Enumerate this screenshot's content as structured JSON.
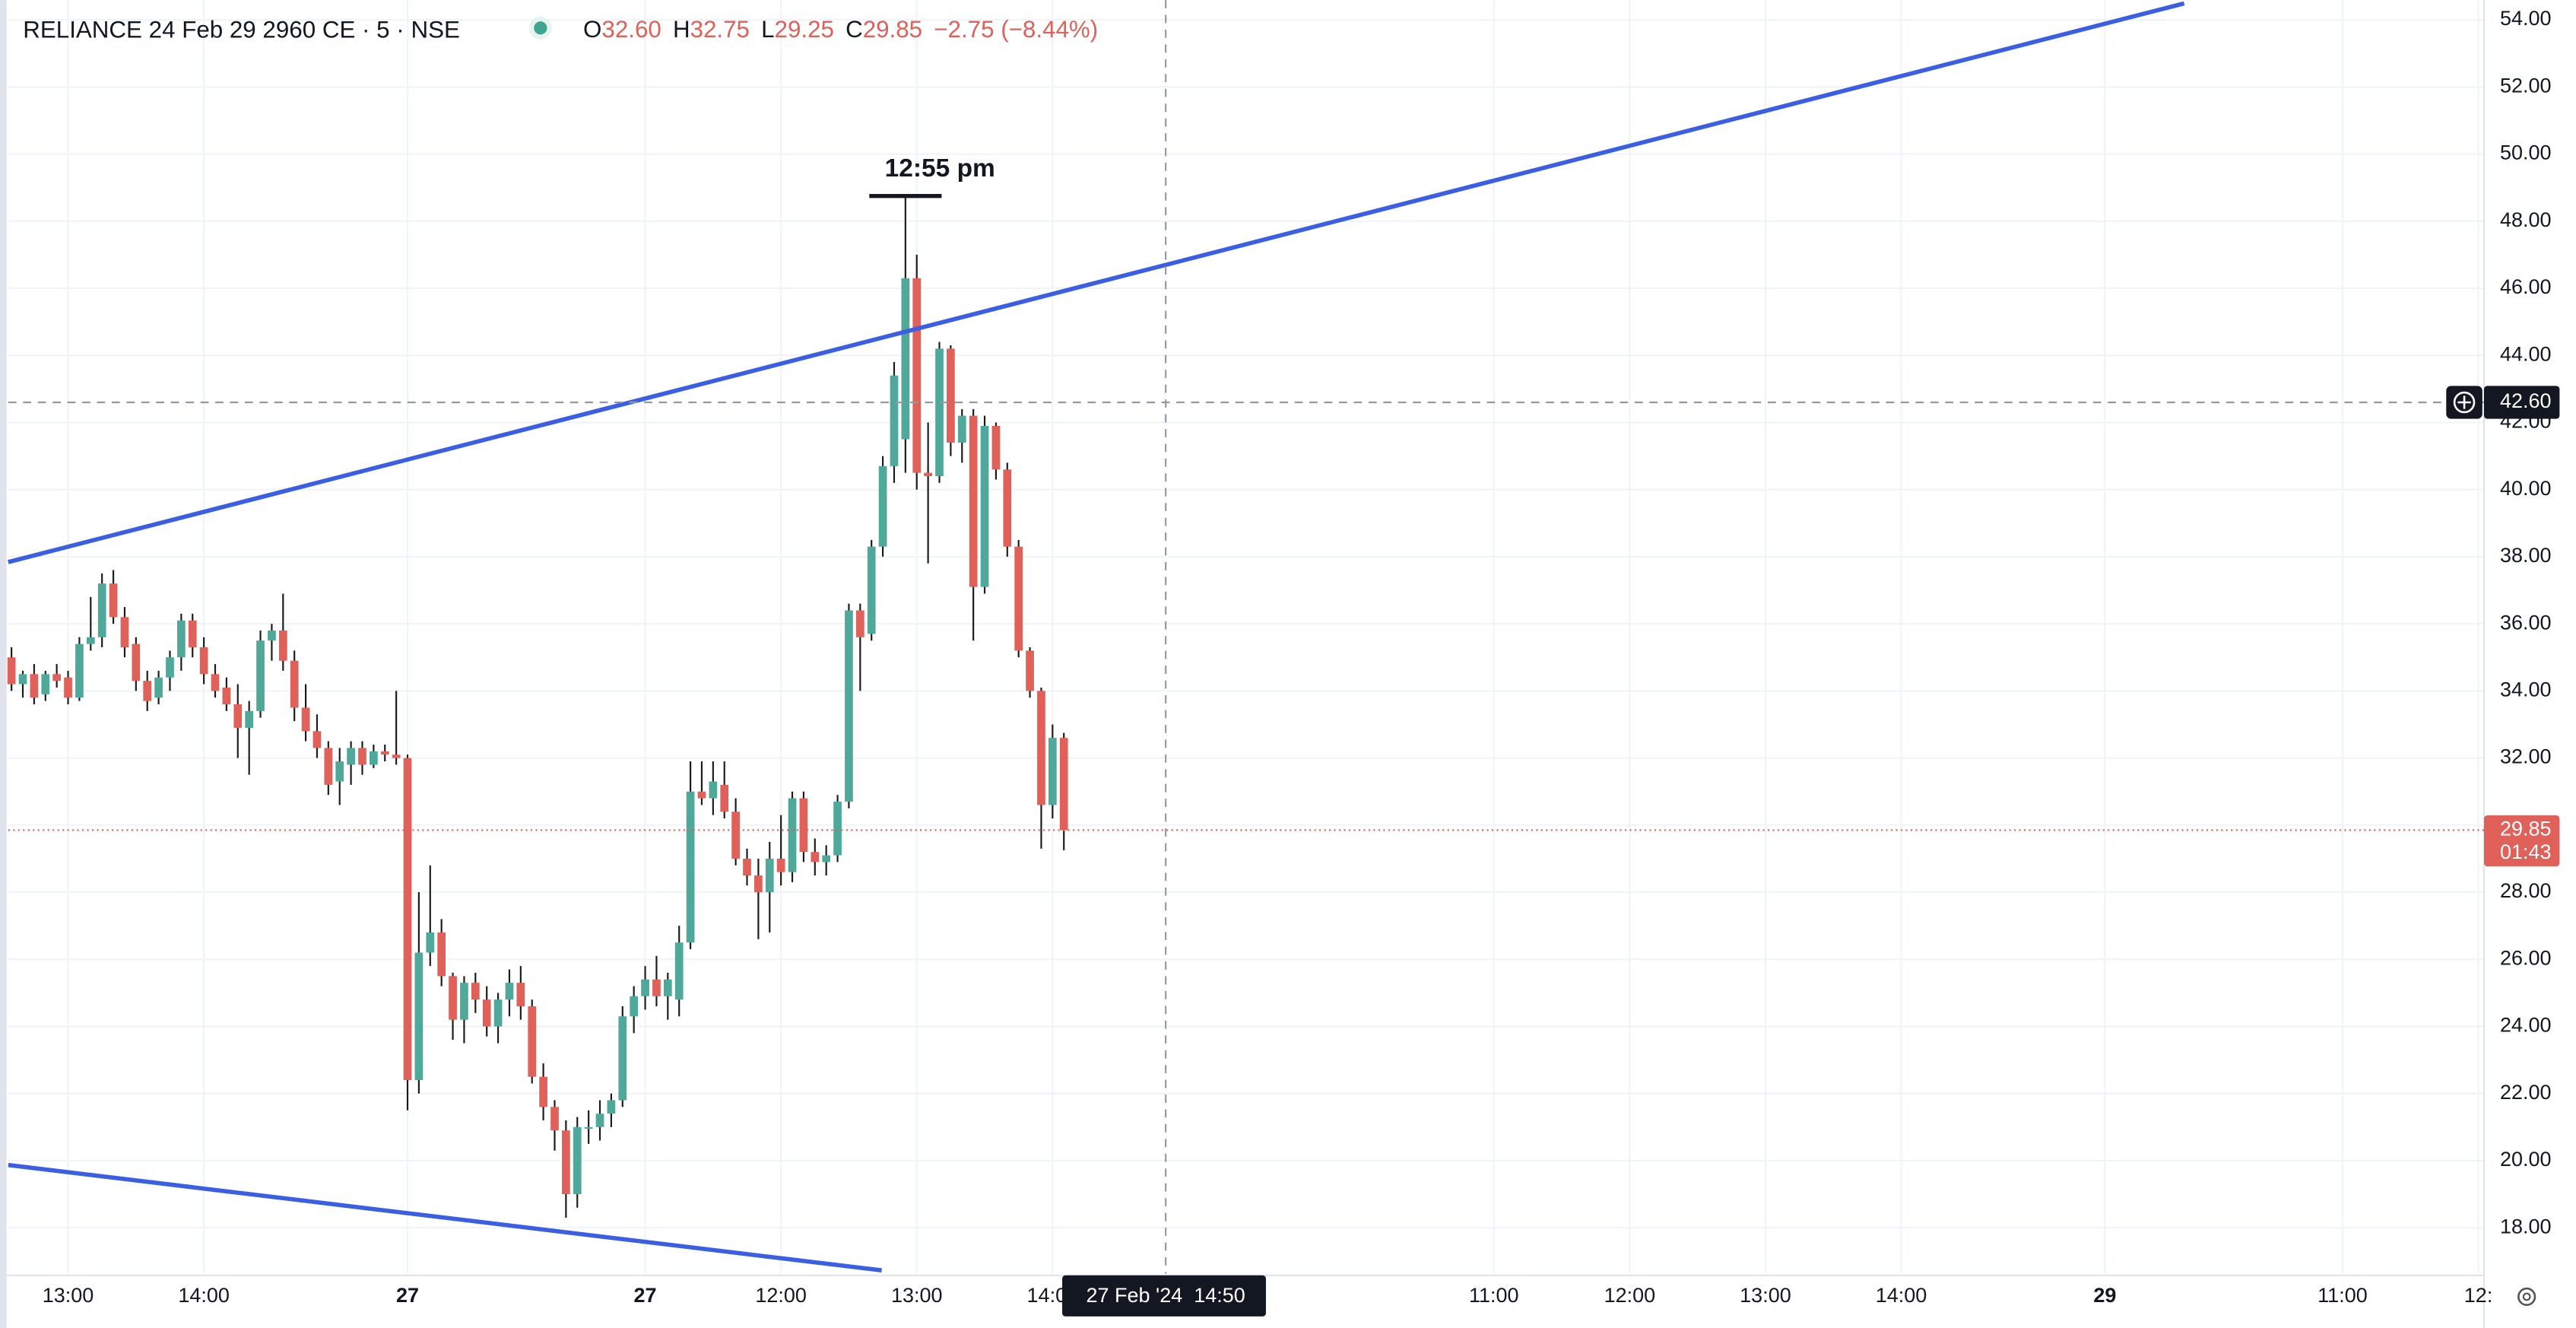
{
  "chart_data": {
    "type": "candlestick",
    "header": {
      "symbol": "RELIANCE 24 Feb 29 2960 CE · 5 · NSE",
      "open_key": "O",
      "open": "32.60",
      "high_key": "H",
      "high": "32.75",
      "low_key": "L",
      "low": "29.25",
      "close_key": "C",
      "close": "29.85",
      "change": "−2.75 (−8.44%)"
    },
    "up_color": "#4fa99a",
    "down_color": "#e0605a",
    "grid": true,
    "x": [
      0,
      1,
      2,
      3,
      4,
      5,
      6,
      7,
      8,
      9,
      10,
      11,
      12,
      13,
      14,
      15,
      16,
      17,
      18,
      19,
      20,
      21,
      22,
      23,
      24,
      25,
      26,
      27,
      28,
      29,
      30,
      31,
      32,
      33,
      34,
      35,
      36,
      37,
      38,
      39,
      40,
      41,
      42,
      43,
      44,
      45,
      46,
      47,
      48,
      49,
      50,
      51,
      52,
      53,
      54,
      55,
      56,
      57,
      58,
      59,
      60,
      61,
      62,
      63,
      64,
      65,
      66,
      67,
      68,
      69,
      70,
      71,
      72,
      73,
      74,
      75,
      76,
      77,
      78,
      79,
      80,
      81,
      82,
      83,
      84,
      85,
      86,
      87,
      88,
      89,
      90,
      91,
      92,
      93
    ],
    "ohlc": [
      [
        35.0,
        35.3,
        34.0,
        34.2
      ],
      [
        34.2,
        34.6,
        33.8,
        34.5
      ],
      [
        34.5,
        34.8,
        33.6,
        33.8
      ],
      [
        33.9,
        34.6,
        33.7,
        34.5
      ],
      [
        34.5,
        34.8,
        34.1,
        34.3
      ],
      [
        34.4,
        34.6,
        33.6,
        33.8
      ],
      [
        33.8,
        35.6,
        33.7,
        35.4
      ],
      [
        35.4,
        36.8,
        35.2,
        35.6
      ],
      [
        35.6,
        37.5,
        35.3,
        37.2
      ],
      [
        37.2,
        37.6,
        36.0,
        36.2
      ],
      [
        36.2,
        36.5,
        35.0,
        35.3
      ],
      [
        35.4,
        35.6,
        34.0,
        34.3
      ],
      [
        34.3,
        34.6,
        33.4,
        33.7
      ],
      [
        33.8,
        34.6,
        33.6,
        34.4
      ],
      [
        34.4,
        35.2,
        34.0,
        35.0
      ],
      [
        35.0,
        36.3,
        34.6,
        36.1
      ],
      [
        36.1,
        36.3,
        35.0,
        35.3
      ],
      [
        35.3,
        35.6,
        34.2,
        34.5
      ],
      [
        34.5,
        34.8,
        33.8,
        34.0
      ],
      [
        34.1,
        34.4,
        33.4,
        33.6
      ],
      [
        33.6,
        34.2,
        32.0,
        32.9
      ],
      [
        32.9,
        33.7,
        31.5,
        33.4
      ],
      [
        33.4,
        35.8,
        33.2,
        35.5
      ],
      [
        35.5,
        36.0,
        34.9,
        35.8
      ],
      [
        35.8,
        36.9,
        34.6,
        34.9
      ],
      [
        34.9,
        35.2,
        33.1,
        33.5
      ],
      [
        33.5,
        34.2,
        32.5,
        32.8
      ],
      [
        32.8,
        33.3,
        32.0,
        32.3
      ],
      [
        32.3,
        32.5,
        30.9,
        31.2
      ],
      [
        31.3,
        32.3,
        30.6,
        31.9
      ],
      [
        31.8,
        32.5,
        31.2,
        32.3
      ],
      [
        32.3,
        32.5,
        31.5,
        31.8
      ],
      [
        31.8,
        32.4,
        31.7,
        32.2
      ],
      [
        32.2,
        32.4,
        31.9,
        32.1
      ],
      [
        32.1,
        34.0,
        31.8,
        32.0
      ],
      [
        32.0,
        32.1,
        21.5,
        22.4
      ],
      [
        22.4,
        28.0,
        22.0,
        26.2
      ],
      [
        26.2,
        28.8,
        25.8,
        26.8
      ],
      [
        26.8,
        27.2,
        25.2,
        25.5
      ],
      [
        25.5,
        25.6,
        23.6,
        24.2
      ],
      [
        24.2,
        25.5,
        23.5,
        25.3
      ],
      [
        25.3,
        25.6,
        24.4,
        24.8
      ],
      [
        24.8,
        25.2,
        23.7,
        24.0
      ],
      [
        24.0,
        25.0,
        23.5,
        24.8
      ],
      [
        24.8,
        25.7,
        24.3,
        25.3
      ],
      [
        25.3,
        25.8,
        24.2,
        24.6
      ],
      [
        24.6,
        24.8,
        22.3,
        22.5
      ],
      [
        22.5,
        22.9,
        21.2,
        21.6
      ],
      [
        21.6,
        21.8,
        20.3,
        20.9
      ],
      [
        20.9,
        21.2,
        18.3,
        19.0
      ],
      [
        19.0,
        21.3,
        18.6,
        21.0
      ],
      [
        21.0,
        21.5,
        20.5,
        21.0
      ],
      [
        21.0,
        21.8,
        20.6,
        21.4
      ],
      [
        21.4,
        22.0,
        21.0,
        21.8
      ],
      [
        21.8,
        24.6,
        21.6,
        24.3
      ],
      [
        24.3,
        25.2,
        23.8,
        24.9
      ],
      [
        24.9,
        25.8,
        24.5,
        25.4
      ],
      [
        25.4,
        26.1,
        24.6,
        24.9
      ],
      [
        24.9,
        25.6,
        24.2,
        25.4
      ],
      [
        24.8,
        27.0,
        24.3,
        26.5
      ],
      [
        26.5,
        31.9,
        26.3,
        31.0
      ],
      [
        31.0,
        31.9,
        30.6,
        30.8
      ],
      [
        30.8,
        31.9,
        30.3,
        31.3
      ],
      [
        31.2,
        31.9,
        30.2,
        30.4
      ],
      [
        30.4,
        30.8,
        28.8,
        29.0
      ],
      [
        29.0,
        29.3,
        28.2,
        28.5
      ],
      [
        28.5,
        29.0,
        26.6,
        28.0
      ],
      [
        28.0,
        29.5,
        26.8,
        29.0
      ],
      [
        29.0,
        30.3,
        28.2,
        28.6
      ],
      [
        28.6,
        31.0,
        28.3,
        30.8
      ],
      [
        30.8,
        31.0,
        28.9,
        29.2
      ],
      [
        29.2,
        29.6,
        28.5,
        28.9
      ],
      [
        28.9,
        29.4,
        28.5,
        29.1
      ],
      [
        29.1,
        30.9,
        28.9,
        30.7
      ],
      [
        30.7,
        36.6,
        30.5,
        36.4
      ],
      [
        36.4,
        36.6,
        34.0,
        35.6
      ],
      [
        35.7,
        38.5,
        35.5,
        38.3
      ],
      [
        38.3,
        41.0,
        38.0,
        40.7
      ],
      [
        40.7,
        43.8,
        40.2,
        43.4
      ],
      [
        41.5,
        48.75,
        40.5,
        46.3
      ],
      [
        46.3,
        47.0,
        40.0,
        40.5
      ],
      [
        40.5,
        42.0,
        37.8,
        40.4
      ],
      [
        40.4,
        44.4,
        40.2,
        44.2
      ],
      [
        44.2,
        44.3,
        41.0,
        41.4
      ],
      [
        41.4,
        42.4,
        40.8,
        42.2
      ],
      [
        42.2,
        42.4,
        35.5,
        37.1
      ],
      [
        37.1,
        42.2,
        36.9,
        41.9
      ],
      [
        41.9,
        42.0,
        40.3,
        40.6
      ],
      [
        40.6,
        40.8,
        38.0,
        38.3
      ],
      [
        38.3,
        38.5,
        35.0,
        35.2
      ],
      [
        35.2,
        35.3,
        33.8,
        34.0
      ],
      [
        34.0,
        34.1,
        29.3,
        30.6
      ],
      [
        30.6,
        33.0,
        30.2,
        32.6
      ],
      [
        32.6,
        32.75,
        29.25,
        29.85
      ]
    ],
    "xlim": [
      -0.29,
      218.5
    ],
    "xticks": [
      {
        "value": 5,
        "label": "13:00"
      },
      {
        "value": 17,
        "label": "14:00"
      },
      {
        "value": 35,
        "label": "27"
      },
      {
        "value": 56,
        "label": "27"
      },
      {
        "value": 68,
        "label": "12:00"
      },
      {
        "value": 80,
        "label": "13:00"
      },
      {
        "value": 92,
        "label": "14:00"
      },
      {
        "value": 131,
        "label": "11:00"
      },
      {
        "value": 143,
        "label": "12:00"
      },
      {
        "value": 155,
        "label": "13:00"
      },
      {
        "value": 167,
        "label": "14:00"
      },
      {
        "value": 185,
        "label": "29"
      },
      {
        "value": 206,
        "label": "11:00"
      },
      {
        "value": 218,
        "label": "12:"
      }
    ],
    "ylim": [
      16.63,
      54.59
    ],
    "yticks": [
      {
        "value": 18,
        "label": "18.00"
      },
      {
        "value": 20,
        "label": "20.00"
      },
      {
        "value": 22,
        "label": "22.00"
      },
      {
        "value": 24,
        "label": "24.00"
      },
      {
        "value": 26,
        "label": "26.00"
      },
      {
        "value": 28,
        "label": "28.00"
      },
      {
        "value": 30,
        "label": "30.00"
      },
      {
        "value": 32,
        "label": "32.00"
      },
      {
        "value": 34,
        "label": "34.00"
      },
      {
        "value": 36,
        "label": "36.00"
      },
      {
        "value": 38,
        "label": "38.00"
      },
      {
        "value": 40,
        "label": "40.00"
      },
      {
        "value": 42,
        "label": "42.00"
      },
      {
        "value": 44,
        "label": "44.00"
      },
      {
        "value": 46,
        "label": "46.00"
      },
      {
        "value": 48,
        "label": "48.00"
      },
      {
        "value": 50,
        "label": "50.00"
      },
      {
        "value": 52,
        "label": "52.00"
      },
      {
        "value": 54,
        "label": "54.00"
      }
    ],
    "trend_lines": [
      {
        "color": "#3a5fe5",
        "points": [
          [
            -0.29,
            37.84
          ],
          [
            192.0,
            54.49
          ]
        ]
      },
      {
        "color": "#3a5fe5",
        "points": [
          [
            -0.29,
            19.87
          ],
          [
            76.9,
            16.73
          ]
        ]
      }
    ],
    "annotation": {
      "text": "12:55 pm",
      "x": 79,
      "y": 48.75
    },
    "crosshair": {
      "x": 102,
      "x_label": "27 Feb '24  14:50",
      "y": 42.6,
      "y_label": "42.60"
    },
    "last_price": {
      "value": 29.85,
      "label": "29.85",
      "countdown": "01:43"
    }
  }
}
